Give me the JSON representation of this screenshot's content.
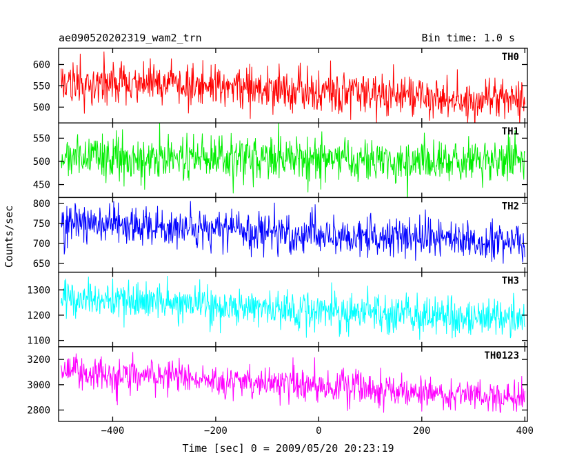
{
  "header": {
    "left": "ae090520202319_wam2_trn",
    "right": "Bin time: 1.0 s"
  },
  "chart_data": {
    "type": "line",
    "title": "ae090520202319_wam2_trn",
    "subtitle": "Bin time: 1.0 s",
    "xlabel": "Time [sec] 0 = 2009/05/20 20:23:19",
    "ylabel": "Counts/sec",
    "xlim": [
      -505,
      405
    ],
    "xticks": [
      -400,
      -200,
      0,
      200,
      400
    ],
    "grid": false,
    "panels": [
      {
        "name": "TH0",
        "color": "#ff0000",
        "ylim": [
          463,
          638
        ],
        "yticks": [
          500,
          550,
          600
        ],
        "trend": {
          "x": [
            -500,
            -250,
            0,
            250,
            400
          ],
          "y": [
            560,
            550,
            535,
            525,
            520
          ]
        },
        "noise_sd": 25
      },
      {
        "name": "TH1",
        "color": "#00ee00",
        "ylim": [
          422,
          583
        ],
        "yticks": [
          450,
          500,
          550
        ],
        "trend": {
          "x": [
            -500,
            -250,
            0,
            250,
            400
          ],
          "y": [
            510,
            508,
            502,
            500,
            498
          ]
        },
        "noise_sd": 24
      },
      {
        "name": "TH2",
        "color": "#0000ff",
        "ylim": [
          628,
          815
        ],
        "yticks": [
          650,
          700,
          750,
          800
        ],
        "trend": {
          "x": [
            -500,
            -250,
            0,
            250,
            400
          ],
          "y": [
            752,
            740,
            722,
            710,
            705
          ]
        },
        "noise_sd": 25
      },
      {
        "name": "TH3",
        "color": "#00ffff",
        "ylim": [
          1075,
          1370
        ],
        "yticks": [
          1100,
          1200,
          1300
        ],
        "trend": {
          "x": [
            -500,
            -250,
            0,
            250,
            400
          ],
          "y": [
            1270,
            1245,
            1215,
            1195,
            1180
          ]
        },
        "noise_sd": 37
      },
      {
        "name": "TH0123",
        "color": "#ff00ff",
        "ylim": [
          2710,
          3300
        ],
        "yticks": [
          2800,
          3000,
          3200
        ],
        "trend": {
          "x": [
            -500,
            -250,
            0,
            250,
            400
          ],
          "y": [
            3100,
            3050,
            2990,
            2920,
            2890
          ]
        },
        "noise_sd": 65
      }
    ]
  }
}
